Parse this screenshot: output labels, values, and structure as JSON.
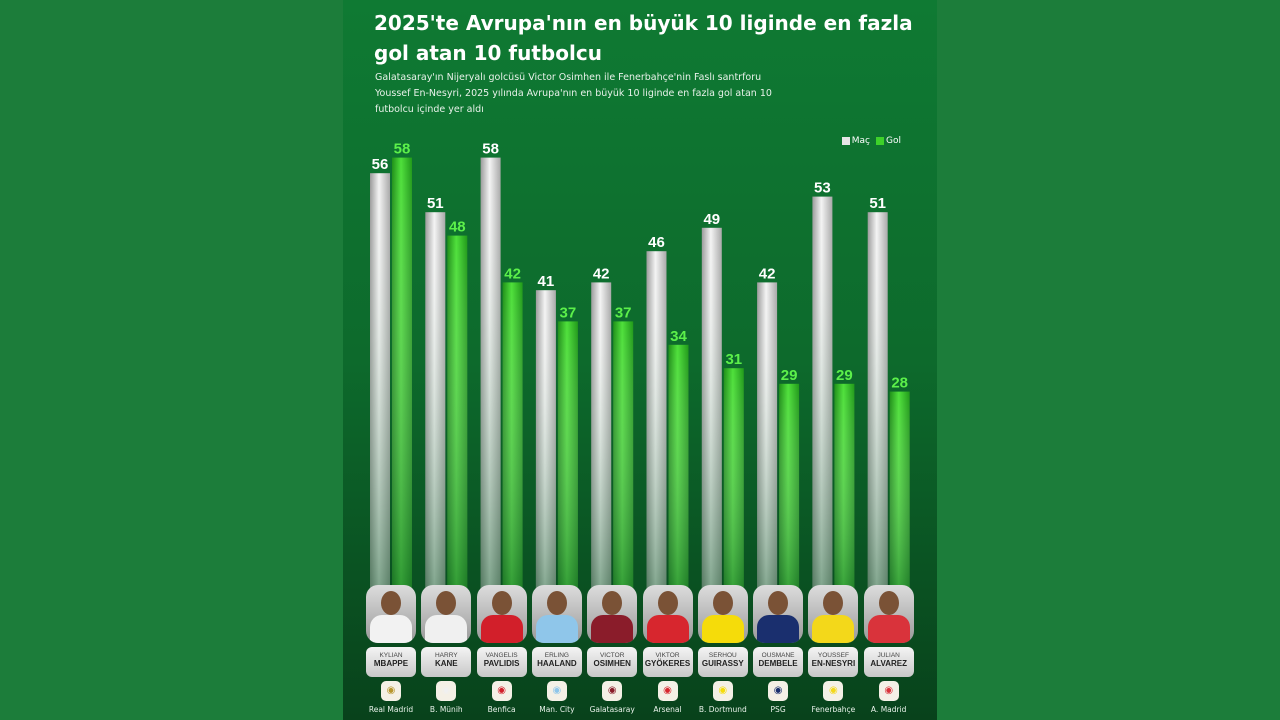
{
  "chart_data": {
    "type": "bar",
    "title": "2025'te Avrupa'nın en büyük 10 liginde en fazla gol atan 10 futbolcu",
    "subtitle": "Galatasaray'ın Nijeryalı golcüsü Victor Osimhen ile Fenerbahçe'nin Faslı santrforu Youssef En-Nesyri, 2025 yılında Avrupa'nın en büyük 10 liginde en fazla gol atan 10 futbolcu içinde yer aldı",
    "legend_position": "top-right",
    "grid": false,
    "colors": {
      "mac": "#e6e6e6",
      "gol": "#3ed12a"
    },
    "categories": [
      {
        "first": "KYLIAN",
        "last": "MBAPPE",
        "club": "Real Madrid"
      },
      {
        "first": "HARRY",
        "last": "KANE",
        "club": "B. Münih"
      },
      {
        "first": "VANGELIS",
        "last": "PAVLIDIS",
        "club": "Benfica"
      },
      {
        "first": "ERLING",
        "last": "HAALAND",
        "club": "Man. City"
      },
      {
        "first": "VICTOR",
        "last": "OSIMHEN",
        "club": "Galatasaray"
      },
      {
        "first": "VIKTOR",
        "last": "GYÖKERES",
        "club": "Arsenal"
      },
      {
        "first": "SERHOU",
        "last": "GUIRASSY",
        "club": "B. Dortmund"
      },
      {
        "first": "OUSMANE",
        "last": "DEMBELE",
        "club": "PSG"
      },
      {
        "first": "YOUSSEF",
        "last": "EN-NESYRI",
        "club": "Fenerbahçe"
      },
      {
        "first": "JULIAN",
        "last": "ALVAREZ",
        "club": "A. Madrid"
      }
    ],
    "series": [
      {
        "name": "Maç",
        "values": [
          56,
          51,
          58,
          41,
          42,
          46,
          49,
          42,
          53,
          51
        ]
      },
      {
        "name": "Gol",
        "values": [
          58,
          48,
          42,
          37,
          37,
          34,
          31,
          29,
          29,
          28
        ]
      }
    ],
    "shirt_colors": [
      "#f2f2f2",
      "#f0f0f0",
      "#d21f2a",
      "#8fc6ea",
      "#8a1c2a",
      "#d7262e",
      "#f5dc0a",
      "#1a2f6e",
      "#f3d81a",
      "#d9333b"
    ],
    "club_icons": [
      "real-madrid-crest",
      "bayern-crest",
      "benfica-crest",
      "man-city-crest",
      "galatasaray-crest",
      "arsenal-crest",
      "dortmund-crest",
      "psg-crest",
      "fenerbahce-crest",
      "atletico-crest"
    ]
  }
}
